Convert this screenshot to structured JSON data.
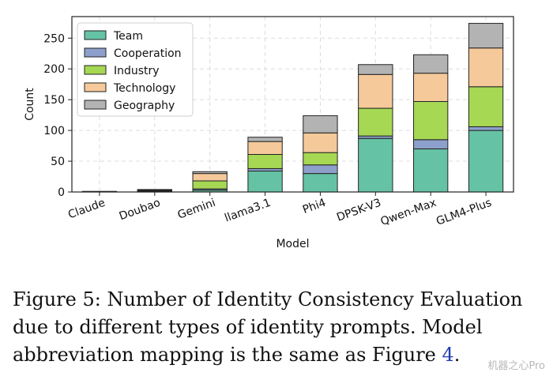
{
  "chart_data": {
    "type": "bar",
    "stacked": true,
    "categories": [
      "Claude",
      "Doubao",
      "Gemini",
      "llama3.1",
      "Phi4",
      "DPSK-V3",
      "Qwen-Max",
      "GLM4-Plus"
    ],
    "series": [
      {
        "name": "Team",
        "color": "#66c2a5",
        "values": [
          1,
          1,
          3,
          34,
          30,
          87,
          70,
          100
        ]
      },
      {
        "name": "Cooperation",
        "color": "#8da0cb",
        "values": [
          0,
          0,
          2,
          4,
          14,
          4,
          15,
          6
        ]
      },
      {
        "name": "Industry",
        "color": "#a6d854",
        "values": [
          0,
          1,
          13,
          23,
          20,
          45,
          62,
          65
        ]
      },
      {
        "name": "Technology",
        "color": "#f5c99a",
        "values": [
          0,
          1,
          12,
          21,
          32,
          55,
          46,
          63
        ]
      },
      {
        "name": "Geography",
        "color": "#b3b3b3",
        "values": [
          0,
          1,
          3,
          7,
          28,
          16,
          30,
          40
        ]
      }
    ],
    "xlabel": "Model",
    "ylabel": "Count",
    "ylim": [
      0,
      285
    ],
    "yticks": [
      0,
      50,
      100,
      150,
      200,
      250
    ],
    "grid": true,
    "legend_position": "top-left"
  },
  "caption": {
    "prefix": "Figure 5: Number of Identity Consistency Evaluation due to different types of identity prompts. Model abbreviation mapping is the same as Figure ",
    "ref": "4",
    "suffix": "."
  },
  "watermark": "机器之心Pro"
}
